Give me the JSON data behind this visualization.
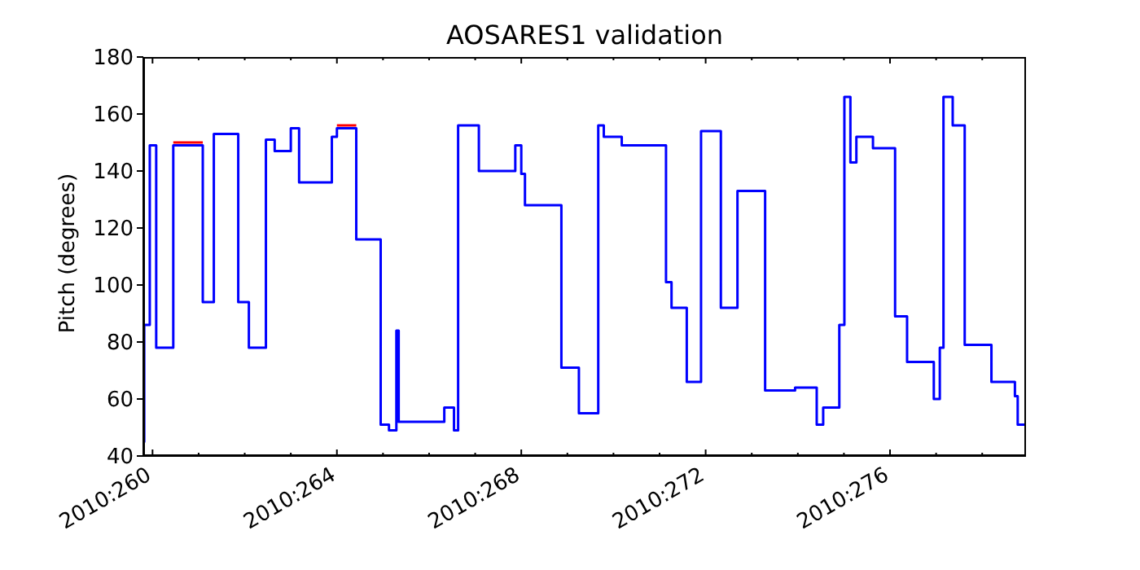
{
  "chart_data": {
    "type": "step",
    "title": "AOSARES1 validation",
    "ylabel": "Pitch (degrees)",
    "x": [
      "2010-09-16T19:12",
      "2010-09-16T19:41",
      "2010-09-16T22:34",
      "2010-09-17T01:55",
      "2010-09-17T10:48",
      "2010-09-18T02:10",
      "2010-09-18T07:55",
      "2010-09-18T20:38",
      "2010-09-19T02:10",
      "2010-09-19T11:02",
      "2010-09-19T15:36",
      "2010-09-20T00:00",
      "2010-09-20T04:19",
      "2010-09-20T21:22",
      "2010-09-21T00:00",
      "2010-09-21T10:05",
      "2010-09-21T22:48",
      "2010-09-22T03:07",
      "2010-09-22T06:58",
      "2010-09-22T08:10",
      "2010-09-23T07:55",
      "2010-09-23T12:58",
      "2010-09-23T15:07",
      "2010-09-24T01:55",
      "2010-09-24T20:53",
      "2010-09-25T00:00",
      "2010-09-25T01:55",
      "2010-09-25T20:53",
      "2010-09-26T06:00",
      "2010-09-26T16:05",
      "2010-09-26T18:58",
      "2010-09-27T04:19",
      "2010-09-28T03:22",
      "2010-09-28T06:14",
      "2010-09-28T14:10",
      "2010-09-28T21:36",
      "2010-09-29T07:55",
      "2010-09-29T16:34",
      "2010-09-30T06:58",
      "2010-09-30T22:34",
      "2010-10-01T09:50",
      "2010-10-01T13:12",
      "2010-10-01T21:36",
      "2010-10-02T00:14",
      "2010-10-02T03:22",
      "2010-10-02T06:29",
      "2010-10-02T15:07",
      "2010-10-03T02:38",
      "2010-10-03T08:53",
      "2010-10-03T22:48",
      "2010-10-04T01:55",
      "2010-10-04T03:50",
      "2010-10-04T08:38",
      "2010-10-04T14:53",
      "2010-10-05T04:48",
      "2010-10-05T17:02",
      "2010-10-05T18:29",
      "2010-10-05T22:48"
    ],
    "series": [
      {
        "color": "#ff0000",
        "x": [
          "2010-09-17T10:48",
          "2010-09-18T02:10",
          "2010-09-19T12:00",
          "2010-09-21T00:00",
          "2010-09-21T10:05"
        ],
        "values": [
          150,
          150,
          null,
          156,
          156
        ]
      },
      {
        "color": "#0000ff",
        "values": [
          45,
          86,
          149,
          78,
          149,
          94,
          153,
          94,
          78,
          151,
          147,
          155,
          136,
          152,
          155,
          116,
          51,
          49,
          84,
          52,
          57,
          49,
          156,
          140,
          149,
          139,
          128,
          71,
          55,
          156,
          152,
          149,
          101,
          92,
          66,
          154,
          92,
          133,
          63,
          64,
          51,
          57,
          86,
          166,
          143,
          152,
          148,
          89,
          73,
          60,
          78,
          166,
          156,
          79,
          66,
          61,
          51,
          51
        ]
      }
    ],
    "xlim": [
      "2010-09-16T19:12",
      "2010-10-05T22:48"
    ],
    "xticks": [
      {
        "value": "2010-09-17",
        "label": "2010:260"
      },
      {
        "value": "2010-09-18",
        "label": null
      },
      {
        "value": "2010-09-19",
        "label": null
      },
      {
        "value": "2010-09-20",
        "label": null
      },
      {
        "value": "2010-09-21",
        "label": "2010:264"
      },
      {
        "value": "2010-09-22",
        "label": null
      },
      {
        "value": "2010-09-23",
        "label": null
      },
      {
        "value": "2010-09-24",
        "label": null
      },
      {
        "value": "2010-09-25",
        "label": "2010:268"
      },
      {
        "value": "2010-09-26",
        "label": null
      },
      {
        "value": "2010-09-27",
        "label": null
      },
      {
        "value": "2010-09-28",
        "label": null
      },
      {
        "value": "2010-09-29",
        "label": "2010:272"
      },
      {
        "value": "2010-09-30",
        "label": null
      },
      {
        "value": "2010-10-01",
        "label": null
      },
      {
        "value": "2010-10-02",
        "label": null
      },
      {
        "value": "2010-10-03",
        "label": "2010:276"
      },
      {
        "value": "2010-10-04",
        "label": null
      },
      {
        "value": "2010-10-05",
        "label": null
      }
    ],
    "ylim": [
      40,
      180
    ],
    "yticks": [
      40,
      60,
      80,
      100,
      120,
      140,
      160,
      180
    ],
    "line_style": "solid"
  }
}
